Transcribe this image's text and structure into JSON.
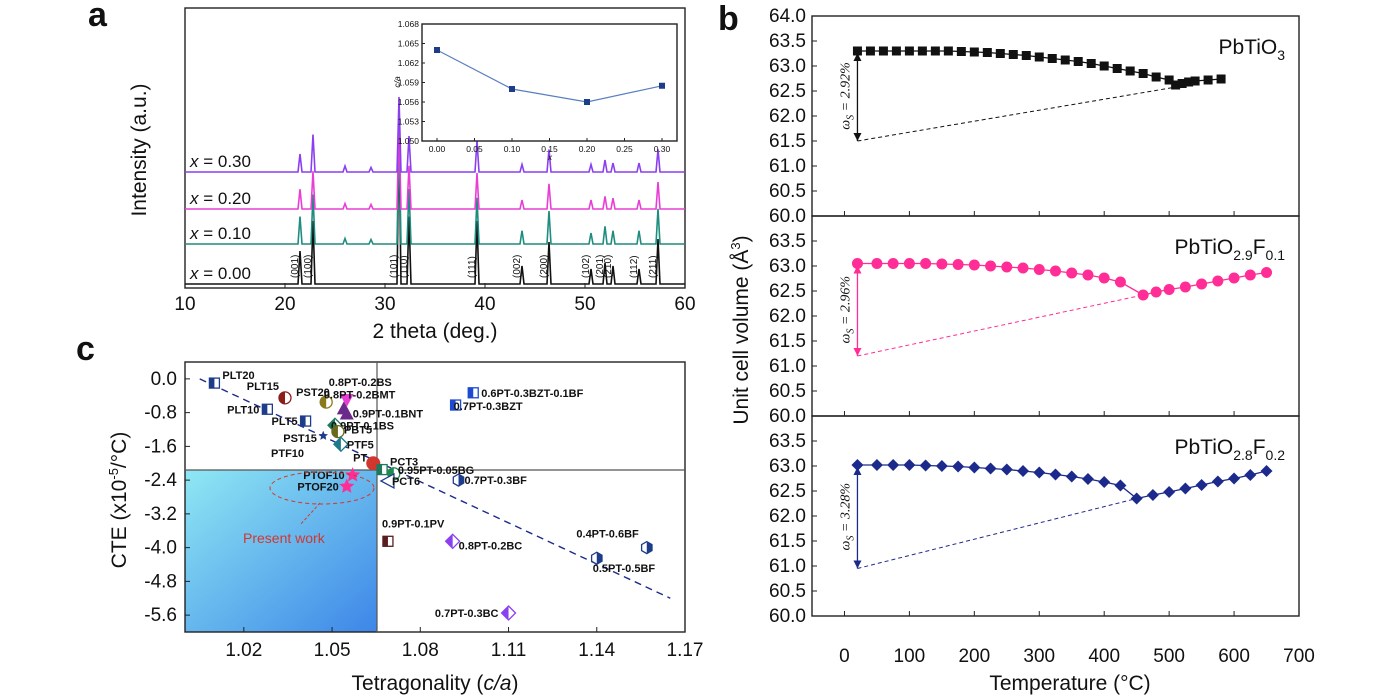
{
  "panels": {
    "a": "a",
    "b": "b",
    "c": "c"
  },
  "colors": {
    "black": "#111111",
    "green": "#1e8c7e",
    "magenta": "#e83ed6",
    "purple": "#8a3ff0",
    "pink": "#ff2d95",
    "navy": "#1c2a8c",
    "inset": "#1d3d8a",
    "present_red": "#d2372f"
  },
  "chart_data": [
    {
      "id": "a",
      "type": "line",
      "title": "",
      "xlabel": "2 theta (deg.)",
      "ylabel": "Intensity (a.u.)",
      "xlim": [
        10,
        60
      ],
      "xticks": [
        10,
        20,
        30,
        40,
        50,
        60
      ],
      "peaks_2theta": [
        21.5,
        22.8,
        26,
        28.6,
        31.4,
        32.4,
        39.2,
        43.7,
        46.4,
        50.6,
        52,
        52.8,
        55.4,
        57.3
      ],
      "peak_labels": [
        {
          "label": "(001)",
          "x": 21.5
        },
        {
          "label": "(100)",
          "x": 22.8
        },
        {
          "label": "(101)",
          "x": 31.4
        },
        {
          "label": "(110)",
          "x": 32.4
        },
        {
          "label": "(111)",
          "x": 39.2
        },
        {
          "label": "(002)",
          "x": 43.7
        },
        {
          "label": "(200)",
          "x": 46.4
        },
        {
          "label": "(102)",
          "x": 50.6
        },
        {
          "label": "(201)",
          "x": 52.0
        },
        {
          "label": "(210)",
          "x": 52.8
        },
        {
          "label": "(112)",
          "x": 55.4
        },
        {
          "label": "(211)",
          "x": 57.3
        }
      ],
      "series": [
        {
          "name": "x = 0.00",
          "color": "#111111",
          "peak_heights": [
            0.22,
            0.42,
            0,
            0,
            1.0,
            0.45,
            0.42,
            0.12,
            0.28,
            0.1,
            0.14,
            0.12,
            0.1,
            0.3
          ]
        },
        {
          "name": "x = 0.10",
          "color": "#1e8c7e",
          "peak_heights": [
            0.25,
            0.45,
            0.05,
            0.04,
            1.0,
            0.5,
            0.42,
            0.12,
            0.3,
            0.1,
            0.16,
            0.12,
            0.12,
            0.32
          ]
        },
        {
          "name": "x = 0.20",
          "color": "#e83ed6",
          "peak_heights": [
            0.22,
            0.42,
            0.06,
            0.05,
            0.95,
            0.48,
            0.4,
            0.1,
            0.28,
            0.1,
            0.14,
            0.12,
            0.1,
            0.3
          ]
        },
        {
          "name": "x = 0.30",
          "color": "#8a3ff0",
          "peak_heights": [
            0.24,
            0.5,
            0.08,
            0.06,
            1.0,
            0.48,
            0.42,
            0.1,
            0.3,
            0.1,
            0.16,
            0.12,
            0.12,
            0.3
          ]
        }
      ],
      "inset": {
        "type": "line",
        "xlabel": "x",
        "ylabel": "c/a",
        "xlim": [
          -0.02,
          0.32
        ],
        "ylim": [
          1.05,
          1.068
        ],
        "xticks": [
          0.0,
          0.05,
          0.1,
          0.15,
          0.2,
          0.25,
          0.3
        ],
        "xtick_labels": [
          "0.00",
          "0.05",
          "0.10",
          "0.15",
          "0.20",
          "0.25",
          "0.30"
        ],
        "yticks": [
          1.05,
          1.053,
          1.056,
          1.059,
          1.062,
          1.065,
          1.068
        ],
        "ytick_labels": [
          "1.050",
          "1.053",
          "1.056",
          "1.059",
          "1.062",
          "1.065",
          "1.068"
        ],
        "x": [
          0.0,
          0.1,
          0.2,
          0.3
        ],
        "y": [
          1.064,
          1.058,
          1.056,
          1.0585
        ]
      }
    },
    {
      "id": "b",
      "type": "scatter",
      "xlabel": "Temperature (°C)",
      "ylabel": "Unit cell volume (Å3)",
      "xlim": [
        -50,
        700
      ],
      "xticks": [
        0,
        100,
        200,
        300,
        400,
        500,
        600,
        700
      ],
      "ylim": [
        60.0,
        64.0
      ],
      "yticks": [
        60.0,
        60.5,
        61.0,
        61.5,
        62.0,
        62.5,
        63.0,
        63.5,
        64.0
      ],
      "ytick_labels": [
        "60.0",
        "60.5",
        "61.0",
        "61.5",
        "62.0",
        "62.5",
        "63.0",
        "63.5",
        "64.0"
      ],
      "series": [
        {
          "name": "PbTiO3",
          "formula": "PbTiO",
          "formula_sub": "3",
          "color": "#111111",
          "marker": "square",
          "omega": "ωs = 2.92%",
          "omega_main": "ω",
          "omega_sub": "S",
          "omega_val": " = 2.92%",
          "x": [
            20,
            40,
            60,
            80,
            100,
            120,
            140,
            160,
            180,
            200,
            220,
            240,
            260,
            280,
            300,
            320,
            340,
            360,
            380,
            400,
            420,
            440,
            460,
            480,
            500,
            510,
            520,
            530,
            540,
            560,
            580
          ],
          "y": [
            63.3,
            63.3,
            63.3,
            63.3,
            63.3,
            63.3,
            63.3,
            63.3,
            63.29,
            63.28,
            63.27,
            63.25,
            63.23,
            63.21,
            63.18,
            63.15,
            63.12,
            63.09,
            63.05,
            63.0,
            62.95,
            62.9,
            62.85,
            62.78,
            62.72,
            62.62,
            62.65,
            62.68,
            62.7,
            62.72,
            62.74
          ],
          "dash_from": [
            20,
            61.5
          ],
          "dash_to": [
            520,
            62.6
          ]
        },
        {
          "name": "PbTiO2.9F0.1",
          "formula": "PbTiO",
          "formula_sub": "2.9",
          "formula_f": "F",
          "formula_f_sub": "0.1",
          "color": "#ff2d95",
          "marker": "circle",
          "omega": "ωs = 2.96%",
          "omega_main": "ω",
          "omega_sub": "S",
          "omega_val": " = 2.96%",
          "x": [
            20,
            50,
            75,
            100,
            125,
            150,
            175,
            200,
            225,
            250,
            275,
            300,
            325,
            350,
            375,
            400,
            425,
            460,
            480,
            500,
            525,
            550,
            575,
            600,
            625,
            650
          ],
          "y": [
            63.05,
            63.05,
            63.05,
            63.05,
            63.05,
            63.04,
            63.03,
            63.02,
            63.0,
            62.98,
            62.96,
            62.93,
            62.9,
            62.86,
            62.82,
            62.76,
            62.68,
            62.42,
            62.48,
            62.53,
            62.58,
            62.64,
            62.7,
            62.76,
            62.82,
            62.87
          ],
          "dash_from": [
            20,
            61.2
          ],
          "dash_to": [
            460,
            62.42
          ]
        },
        {
          "name": "PbTiO2.8F0.2",
          "formula": "PbTiO",
          "formula_sub": "2.8",
          "formula_f": "F",
          "formula_f_sub": "0.2",
          "color": "#1c2a8c",
          "marker": "diamond",
          "omega": "ωs = 3.28%",
          "omega_main": "ω",
          "omega_sub": "S",
          "omega_val": " = 3.28%",
          "x": [
            20,
            50,
            75,
            100,
            125,
            150,
            175,
            200,
            225,
            250,
            275,
            300,
            325,
            350,
            375,
            400,
            425,
            450,
            475,
            500,
            525,
            550,
            575,
            600,
            625,
            650
          ],
          "y": [
            63.02,
            63.02,
            63.02,
            63.02,
            63.01,
            63.0,
            62.99,
            62.97,
            62.95,
            62.93,
            62.9,
            62.87,
            62.83,
            62.79,
            62.74,
            62.68,
            62.61,
            62.35,
            62.42,
            62.48,
            62.55,
            62.62,
            62.69,
            62.75,
            62.82,
            62.9
          ],
          "dash_from": [
            20,
            60.95
          ],
          "dash_to": [
            450,
            62.35
          ]
        }
      ]
    },
    {
      "id": "c",
      "type": "scatter",
      "xlabel": "Tetragonality (c/a)",
      "xlabel_main": "Tetragonality (",
      "xlabel_it": "c/a",
      "xlabel_end": ")",
      "ylabel": "CTE (x10-5/°C)",
      "xlim": [
        1.0,
        1.17
      ],
      "xticks": [
        1.02,
        1.05,
        1.08,
        1.11,
        1.14,
        1.17
      ],
      "xtick_labels": [
        "1.02",
        "1.05",
        "1.08",
        "1.11",
        "1.14",
        "1.17"
      ],
      "ylim": [
        -6.0,
        0.4
      ],
      "yticks": [
        0.0,
        -0.8,
        -1.6,
        -2.4,
        -3.2,
        -4.0,
        -4.8,
        -5.6
      ],
      "ytick_labels": [
        "0.0",
        "-0.8",
        "-1.6",
        "-2.4",
        "-3.2",
        "-4.0",
        "-4.8",
        "-5.6"
      ],
      "pt_reference": {
        "x": 1.064,
        "y": -2.0
      },
      "trend_line": {
        "x": [
          1.005,
          1.165
        ],
        "y": [
          0.0,
          -5.2
        ]
      },
      "present_label": "Present work",
      "points": [
        {
          "label": "PLT20",
          "x": 1.01,
          "y": -0.1,
          "color": "#1d3d8a",
          "shape": "square"
        },
        {
          "label": "PLT15",
          "x": 1.034,
          "y": -0.45,
          "color": "#8b1d1d",
          "shape": "circle"
        },
        {
          "label": "PLT10",
          "x": 1.028,
          "y": -0.72,
          "color": "#1d3d8a",
          "shape": "square"
        },
        {
          "label": "PLT5",
          "x": 1.041,
          "y": -1.0,
          "color": "#1d3d8a",
          "shape": "square"
        },
        {
          "label": "PST20",
          "x": 1.048,
          "y": -0.55,
          "color": "#8a7a1d",
          "shape": "circle"
        },
        {
          "label": "PST15",
          "x": 1.047,
          "y": -1.35,
          "color": "#1d3d8a",
          "shape": "star"
        },
        {
          "label": "0.8PT-0.2BS",
          "x": 1.055,
          "y": -0.5,
          "color": "#e83ed6",
          "shape": "triangle-down"
        },
        {
          "label": "0.8PT-0.2BMT",
          "x": 1.054,
          "y": -0.7,
          "color": "#6a2a8a",
          "shape": "triangle"
        },
        {
          "label": "0.9PT-0.1BNT",
          "x": 1.055,
          "y": -0.82,
          "color": "#6a2a8a",
          "shape": "triangle"
        },
        {
          "label": "0.9PT-0.1BS",
          "x": 1.051,
          "y": -1.1,
          "color": "#1d7a5a",
          "shape": "diamond"
        },
        {
          "label": "PBT5",
          "x": 1.052,
          "y": -1.25,
          "color": "#6a6a1d",
          "shape": "circle"
        },
        {
          "label": "PTF5",
          "x": 1.053,
          "y": -1.55,
          "color": "#1d7a8a",
          "shape": "diamond"
        },
        {
          "label": "0.6PT-0.3BZT-0.1BF",
          "x": 1.098,
          "y": -0.33,
          "color": "#1d4ad0",
          "shape": "square"
        },
        {
          "label": "0.7PT-0.3BZT",
          "x": 1.092,
          "y": -0.62,
          "color": "#1d4ad0",
          "shape": "square"
        },
        {
          "label": "PTF10",
          "x": 1.05,
          "y": -1.85,
          "color": "#1d3d8a",
          "shape": "none"
        },
        {
          "label": "PT",
          "x": 1.064,
          "y": -2.0,
          "color": "#d2372f",
          "shape": "circle"
        },
        {
          "label": "PCT3",
          "x": 1.067,
          "y": -2.15,
          "color": "#1d7a5a",
          "shape": "square"
        },
        {
          "label": "0.95PT-0.05BG",
          "x": 1.071,
          "y": -2.25,
          "color": "#1e8c4e",
          "shape": "circle"
        },
        {
          "label": "PCT6",
          "x": 1.069,
          "y": -2.42,
          "color": "#1d3d8a",
          "shape": "triangle-left"
        },
        {
          "label": "0.7PT-0.3BF",
          "x": 1.093,
          "y": -2.4,
          "color": "#1d3d8a",
          "shape": "hexagon"
        },
        {
          "label": "PTOF10",
          "x": 1.057,
          "y": -2.28,
          "color": "#ff2d95",
          "shape": "star"
        },
        {
          "label": "PTOF20",
          "x": 1.055,
          "y": -2.55,
          "color": "#ff2d95",
          "shape": "star"
        },
        {
          "label": "0.9PT-0.1PV",
          "x": 1.069,
          "y": -3.85,
          "color": "#5a1d1d",
          "shape": "square"
        },
        {
          "label": "0.8PT-0.2BC",
          "x": 1.091,
          "y": -3.85,
          "color": "#8a3ff0",
          "shape": "diamond"
        },
        {
          "label": "0.4PT-0.6BF",
          "x": 1.157,
          "y": -4.0,
          "color": "#1d3d8a",
          "shape": "hexagon"
        },
        {
          "label": "0.5PT-0.5BF",
          "x": 1.14,
          "y": -4.25,
          "color": "#1d3d8a",
          "shape": "hexagon"
        },
        {
          "label": "0.7PT-0.3BC",
          "x": 1.11,
          "y": -5.55,
          "color": "#8a3ff0",
          "shape": "diamond"
        }
      ]
    }
  ]
}
